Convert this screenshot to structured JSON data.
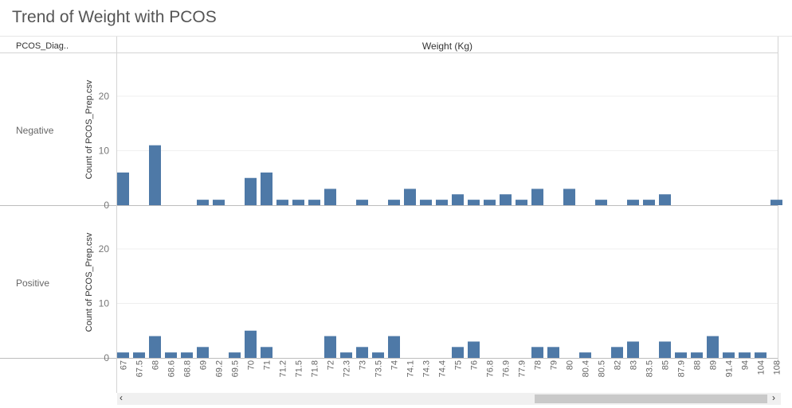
{
  "title": "Trend of Weight with PCOS",
  "header": {
    "row_dim": "PCOS_Diag..",
    "col_dim": "Weight (Kg)"
  },
  "scroll": {
    "left_arrow": "‹",
    "right_arrow": "›"
  },
  "chart_data": {
    "type": "bar",
    "xlabel": "Weight (Kg)",
    "ylabel": "Count of PCOS_Prep.csv",
    "ylim": [
      0,
      25
    ],
    "yticks": [
      0,
      10,
      20
    ],
    "categories": [
      "67",
      "67.5",
      "68",
      "68.6",
      "68.8",
      "69",
      "69.2",
      "69.5",
      "70",
      "71",
      "71.2",
      "71.5",
      "71.8",
      "72",
      "72.3",
      "73",
      "73.5",
      "74",
      "74.1",
      "74.3",
      "74.4",
      "75",
      "76",
      "76.8",
      "76.9",
      "77.9",
      "78",
      "79",
      "80",
      "80.4",
      "80.5",
      "82",
      "83",
      "83.5",
      "85",
      "87.9",
      "88",
      "89",
      "91.4",
      "94",
      "104",
      "108"
    ],
    "series": [
      {
        "name": "Negative",
        "values": [
          6,
          0,
          11,
          0,
          0,
          1,
          1,
          0,
          5,
          6,
          1,
          1,
          1,
          3,
          0,
          1,
          0,
          1,
          3,
          1,
          1,
          2,
          1,
          1,
          2,
          1,
          3,
          0,
          3,
          0,
          1,
          0,
          1,
          1,
          2,
          0,
          0,
          0,
          0,
          0,
          0,
          1
        ]
      },
      {
        "name": "Positive",
        "values": [
          1,
          1,
          4,
          1,
          1,
          2,
          0,
          1,
          5,
          2,
          0,
          0,
          0,
          4,
          1,
          2,
          1,
          4,
          0,
          0,
          0,
          2,
          3,
          0,
          0,
          0,
          2,
          2,
          0,
          1,
          0,
          2,
          3,
          0,
          3,
          1,
          1,
          4,
          1,
          1,
          1,
          0
        ]
      }
    ],
    "color": "#4e79a7"
  }
}
